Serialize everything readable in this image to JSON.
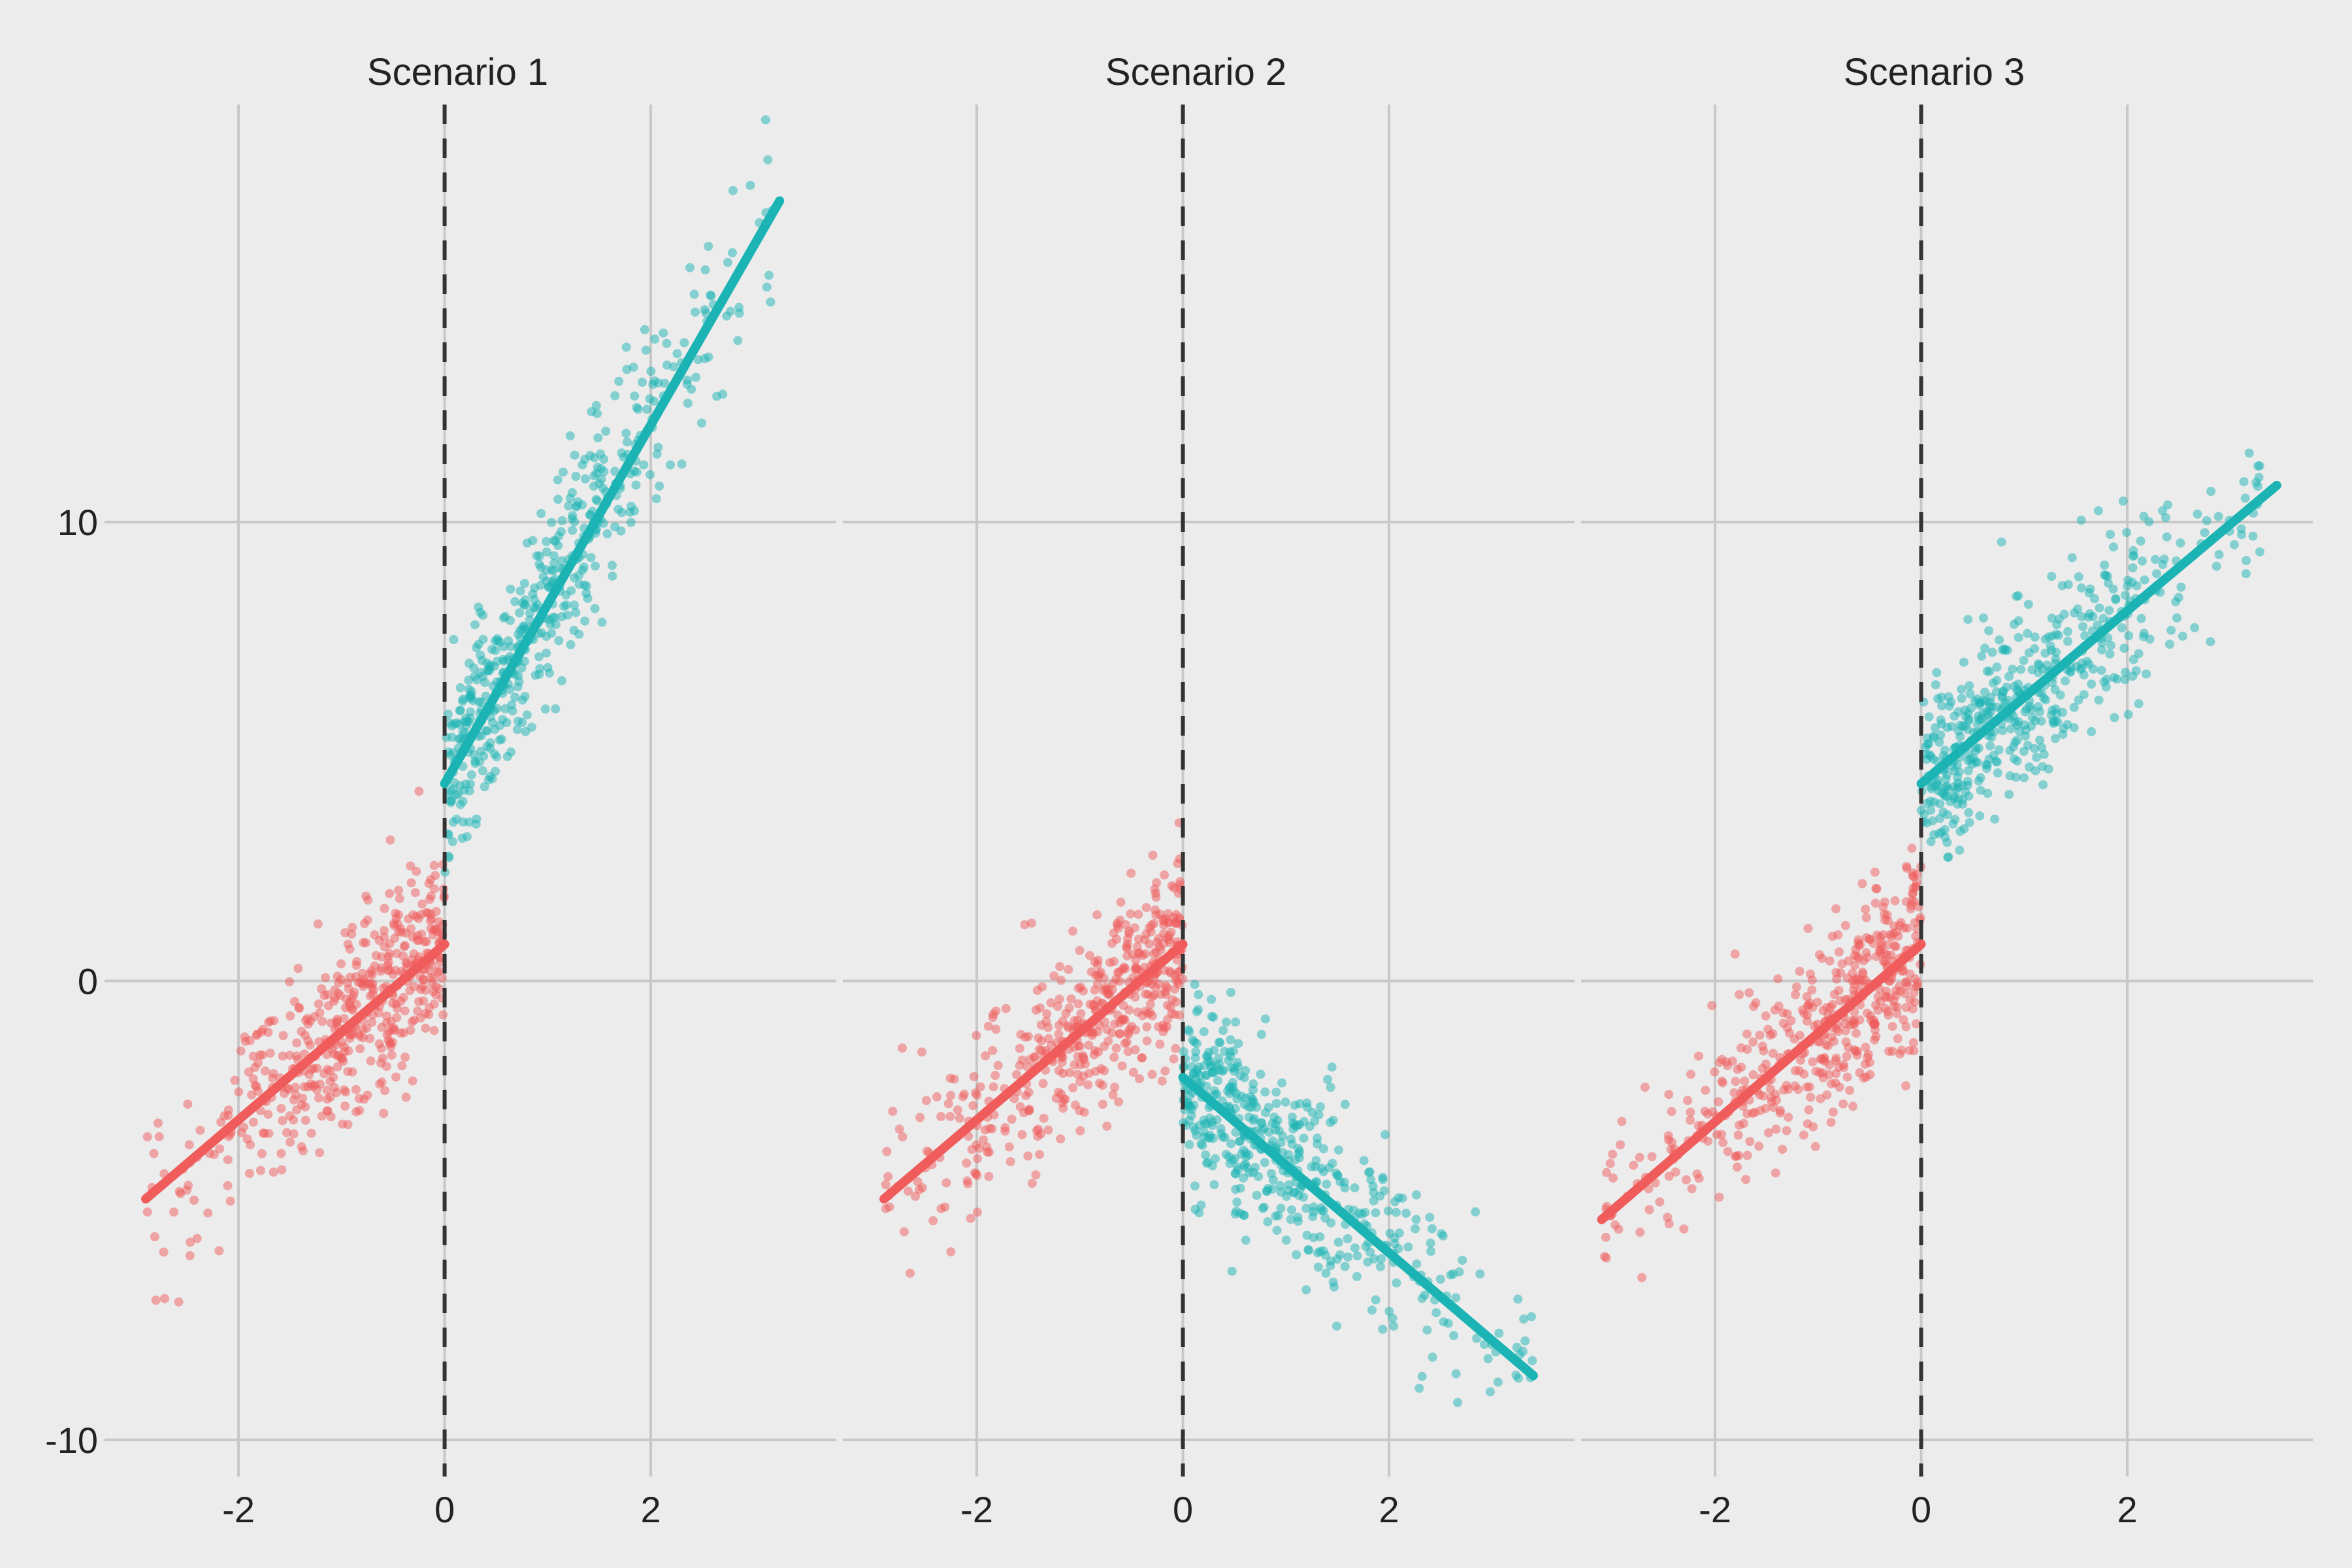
{
  "chart_data": {
    "type": "scatter",
    "layout": "facets",
    "panels": [
      {
        "title": "Scenario 1",
        "cutoff_x": 0,
        "fits": [
          {
            "side": "left",
            "x": [
              -2.9,
              0.0
            ],
            "y": [
              -4.75,
              0.8
            ],
            "color": "#f05b5b"
          },
          {
            "side": "right",
            "x": [
              0.0,
              3.25
            ],
            "y": [
              4.3,
              17.0
            ],
            "color": "#1bb3b3"
          }
        ],
        "points": {
          "left": {
            "count": 500,
            "x_range": [
              -2.9,
              0.0
            ],
            "intercept": 0.8,
            "slope": 1.9,
            "spread": 1.0,
            "color": "#f05b5b"
          },
          "right": {
            "count": 500,
            "x_range": [
              0.0,
              3.2
            ],
            "intercept": 4.3,
            "slope": 3.95,
            "spread": 1.0,
            "color": "#1bb3b3"
          }
        }
      },
      {
        "title": "Scenario 2",
        "cutoff_x": 0,
        "fits": [
          {
            "side": "left",
            "x": [
              -2.9,
              0.0
            ],
            "y": [
              -4.75,
              0.8
            ],
            "color": "#f05b5b"
          },
          {
            "side": "right",
            "x": [
              0.0,
              3.4
            ],
            "y": [
              -2.1,
              -8.6
            ],
            "color": "#1bb3b3"
          }
        ],
        "points": {
          "left": {
            "count": 500,
            "x_range": [
              -2.9,
              0.0
            ],
            "intercept": 0.8,
            "slope": 1.9,
            "spread": 1.0,
            "color": "#f05b5b"
          },
          "right": {
            "count": 500,
            "x_range": [
              0.0,
              3.4
            ],
            "intercept": -2.1,
            "slope": -1.9,
            "spread": 1.0,
            "color": "#1bb3b3"
          }
        }
      },
      {
        "title": "Scenario 3",
        "cutoff_x": 0,
        "fits": [
          {
            "side": "left",
            "x": [
              -3.1,
              0.0
            ],
            "y": [
              -5.2,
              0.8
            ],
            "color": "#f05b5b"
          },
          {
            "side": "right",
            "x": [
              0.0,
              3.45
            ],
            "y": [
              4.3,
              10.8
            ],
            "color": "#1bb3b3"
          }
        ],
        "points": {
          "left": {
            "count": 500,
            "x_range": [
              -3.1,
              0.0
            ],
            "intercept": 0.8,
            "slope": 1.95,
            "spread": 1.0,
            "color": "#f05b5b"
          },
          "right": {
            "count": 500,
            "x_range": [
              0.0,
              3.3
            ],
            "intercept": 4.3,
            "slope": 1.9,
            "spread": 1.0,
            "color": "#1bb3b3"
          }
        }
      }
    ],
    "x_ticks": [
      "-2",
      "0",
      "2"
    ],
    "x_tick_values": [
      -2,
      0,
      2
    ],
    "y_ticks": [
      "-10",
      "0",
      "10"
    ],
    "y_tick_values": [
      -10,
      0,
      10
    ],
    "xlim": [
      -3.3,
      3.8
    ],
    "ylim": [
      -10.8,
      19.1
    ],
    "grid": true,
    "xlabel": "",
    "ylabel": "",
    "legend": "none"
  }
}
